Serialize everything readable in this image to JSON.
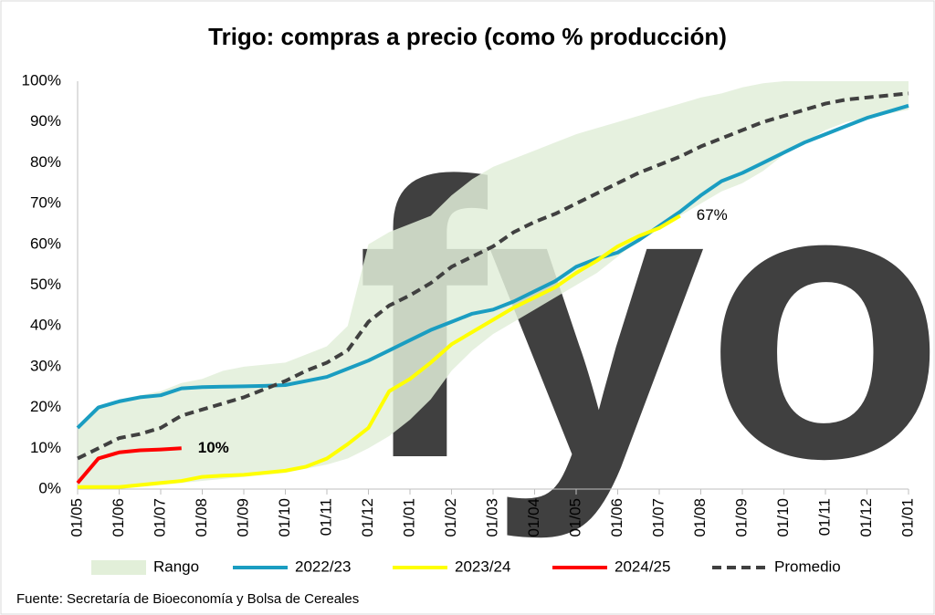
{
  "chart_data": {
    "type": "line",
    "title": "Trigo: compras a precio (como % producción)",
    "source": "Fuente: Secretaría de Bioeconomía y Bolsa de Cereales",
    "watermark": "fyo",
    "x": [
      0,
      0.5,
      1,
      1.5,
      2,
      2.5,
      3,
      3.5,
      4,
      4.5,
      5,
      5.5,
      6,
      6.5,
      7,
      7.5,
      8,
      8.5,
      9,
      9.5,
      10,
      10.5,
      11,
      11.5,
      12,
      12.5,
      13,
      13.5,
      14,
      14.5,
      15,
      15.5,
      16,
      16.5,
      17,
      17.5,
      18,
      18.5,
      19,
      19.5,
      20
    ],
    "xlim": [
      0,
      20
    ],
    "xticks": [
      {
        "value": 0,
        "label": "01/05"
      },
      {
        "value": 1,
        "label": "01/06"
      },
      {
        "value": 2,
        "label": "01/07"
      },
      {
        "value": 3,
        "label": "01/08"
      },
      {
        "value": 4,
        "label": "01/09"
      },
      {
        "value": 5,
        "label": "01/10"
      },
      {
        "value": 6,
        "label": "01/11"
      },
      {
        "value": 7,
        "label": "01/12"
      },
      {
        "value": 8,
        "label": "01/01"
      },
      {
        "value": 9,
        "label": "01/02"
      },
      {
        "value": 10,
        "label": "01/03"
      },
      {
        "value": 11,
        "label": "01/04"
      },
      {
        "value": 12,
        "label": "01/05"
      },
      {
        "value": 13,
        "label": "01/06"
      },
      {
        "value": 14,
        "label": "01/07"
      },
      {
        "value": 15,
        "label": "01/08"
      },
      {
        "value": 16,
        "label": "01/09"
      },
      {
        "value": 17,
        "label": "01/10"
      },
      {
        "value": 18,
        "label": "01/11"
      },
      {
        "value": 19,
        "label": "01/12"
      },
      {
        "value": 20,
        "label": "01/01"
      }
    ],
    "ylim": [
      0,
      100
    ],
    "yticks": [
      {
        "value": 0,
        "label": "0%"
      },
      {
        "value": 10,
        "label": "10%"
      },
      {
        "value": 20,
        "label": "20%"
      },
      {
        "value": 30,
        "label": "30%"
      },
      {
        "value": 40,
        "label": "40%"
      },
      {
        "value": 50,
        "label": "50%"
      },
      {
        "value": 60,
        "label": "60%"
      },
      {
        "value": 70,
        "label": "70%"
      },
      {
        "value": 80,
        "label": "80%"
      },
      {
        "value": 90,
        "label": "90%"
      },
      {
        "value": 100,
        "label": "100%"
      }
    ],
    "grid": false,
    "legend": "bottom",
    "series": [
      {
        "name": "Rango",
        "color": "#e2efd9",
        "style": "range",
        "low": [
          0,
          0,
          0,
          0.5,
          1,
          1.5,
          2,
          2.5,
          3,
          3.5,
          4,
          5,
          6,
          7.5,
          10,
          13,
          17,
          22,
          29,
          34,
          38,
          41,
          44,
          47,
          50,
          53,
          57,
          61,
          64,
          67,
          70,
          73,
          75,
          78,
          82,
          85,
          88,
          90,
          91,
          92,
          93
        ],
        "high": [
          15,
          20,
          22,
          23,
          24,
          26,
          27,
          29,
          30,
          30.5,
          31,
          33,
          35,
          40,
          60,
          63,
          65,
          67,
          72,
          76,
          79,
          81,
          83,
          85,
          87,
          88.5,
          90,
          91.5,
          93,
          94.5,
          96,
          97,
          98.5,
          99.5,
          100,
          100,
          100,
          100,
          100,
          100,
          100
        ]
      },
      {
        "name": "2022/23",
        "color": "#1a9dc1",
        "style": "solid",
        "values": [
          15,
          20,
          21.5,
          22.5,
          23,
          24.7,
          25,
          25.1,
          25.2,
          25.3,
          25.5,
          26.5,
          27.5,
          29.5,
          31.5,
          34,
          36.5,
          39,
          41,
          43,
          44,
          46,
          48.5,
          51,
          54.5,
          56.5,
          58,
          61,
          64.5,
          68,
          72,
          75.5,
          77.5,
          80,
          82.5,
          85,
          87,
          89,
          91,
          92.5,
          94
        ]
      },
      {
        "name": "2023/24",
        "color": "#ffff00",
        "style": "solid",
        "values": [
          0.5,
          0.5,
          0.5,
          1,
          1.5,
          2,
          3,
          3.3,
          3.5,
          4,
          4.5,
          5.5,
          7.5,
          11,
          15,
          24,
          27,
          31,
          35.5,
          38.5,
          41.5,
          44.5,
          47,
          49.5,
          53,
          56,
          59.5,
          62,
          64,
          67,
          null,
          null,
          null,
          null,
          null,
          null,
          null,
          null,
          null,
          null,
          null
        ],
        "value_labels": [
          null,
          null,
          null,
          null,
          null,
          null,
          null,
          null,
          null,
          null,
          null,
          null,
          null,
          null,
          null,
          null,
          null,
          null,
          null,
          null,
          null,
          null,
          null,
          null,
          null,
          null,
          null,
          null,
          null,
          "67%",
          null,
          null,
          null,
          null,
          null,
          null,
          null,
          null,
          null,
          null,
          null
        ]
      },
      {
        "name": "2024/25",
        "color": "#ff0000",
        "style": "solid",
        "values": [
          1.5,
          7.5,
          9,
          9.5,
          9.7,
          10,
          null,
          null,
          null,
          null,
          null,
          null,
          null,
          null,
          null,
          null,
          null,
          null,
          null,
          null,
          null,
          null,
          null,
          null,
          null,
          null,
          null,
          null,
          null,
          null,
          null,
          null,
          null,
          null,
          null,
          null,
          null,
          null,
          null,
          null,
          null
        ],
        "value_labels": [
          null,
          null,
          null,
          null,
          null,
          "10%",
          null,
          null,
          null,
          null,
          null,
          null,
          null,
          null,
          null,
          null,
          null,
          null,
          null,
          null,
          null,
          null,
          null,
          null,
          null,
          null,
          null,
          null,
          null,
          null,
          null,
          null,
          null,
          null,
          null,
          null,
          null,
          null,
          null,
          null,
          null
        ]
      },
      {
        "name": "Promedio",
        "color": "#404040",
        "style": "dashed",
        "values": [
          7.5,
          10,
          12.5,
          13.5,
          15,
          18,
          19.5,
          21,
          22.5,
          24.5,
          26.5,
          29,
          31,
          34,
          41,
          45,
          47.5,
          50.5,
          54.5,
          57,
          59.5,
          63,
          65.5,
          67.5,
          70,
          72.5,
          75,
          77.5,
          79.5,
          81.5,
          84,
          86,
          88,
          90,
          91.5,
          93,
          94.5,
          95.5,
          96,
          96.5,
          97
        ]
      }
    ]
  }
}
